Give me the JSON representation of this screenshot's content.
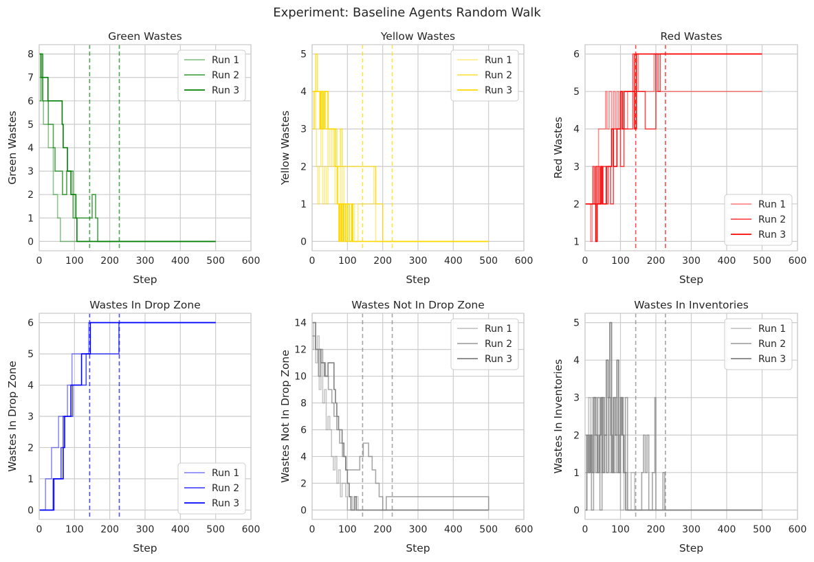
{
  "figure": {
    "title": "Experiment: Baseline Agents Random Walk"
  },
  "chart_data": [
    {
      "type": "line",
      "key": "green",
      "title": "Green Wastes",
      "xlabel": "Step",
      "ylabel": "Green Wastes",
      "xlim": [
        0,
        600
      ],
      "ylim": [
        -0.4,
        8.4
      ],
      "xticks": [
        0,
        100,
        200,
        300,
        400,
        500,
        600
      ],
      "yticks": [
        0,
        1,
        2,
        3,
        4,
        5,
        6,
        7,
        8
      ],
      "grid": true,
      "legend": "upper right",
      "color": "#008000",
      "vlines": [
        143,
        227
      ],
      "series": [
        {
          "name": "Run 1",
          "alpha": 0.45,
          "x": [
            0,
            5,
            10,
            12,
            22,
            26,
            40,
            42,
            52,
            60,
            500
          ],
          "y": [
            7,
            8,
            6,
            5,
            5,
            4,
            2,
            2,
            1,
            0,
            0
          ]
        },
        {
          "name": "Run 2",
          "alpha": 0.7,
          "x": [
            0,
            5,
            10,
            22,
            26,
            40,
            45,
            62,
            66,
            75,
            78,
            80,
            96,
            134,
            150,
            154,
            160,
            166,
            500
          ],
          "y": [
            6,
            8,
            6,
            6,
            5,
            4,
            3,
            3,
            2,
            2,
            3,
            3,
            1,
            1,
            2,
            2,
            1,
            0,
            0
          ]
        },
        {
          "name": "Run 3",
          "alpha": 1.0,
          "x": [
            0,
            5,
            12,
            25,
            60,
            65,
            68,
            74,
            78,
            80,
            87,
            90,
            96,
            104,
            107,
            500
          ],
          "y": [
            8,
            7,
            7,
            6,
            6,
            5,
            4,
            4,
            4,
            3,
            3,
            2,
            2,
            1,
            0,
            0
          ]
        }
      ]
    },
    {
      "type": "line",
      "key": "yellow",
      "title": "Yellow Wastes",
      "xlabel": "Step",
      "ylabel": "Yellow Wastes",
      "xlim": [
        0,
        600
      ],
      "ylim": [
        -0.25,
        5.25
      ],
      "xticks": [
        0,
        100,
        200,
        300,
        400,
        500,
        600
      ],
      "yticks": [
        0,
        1,
        2,
        3,
        4,
        5
      ],
      "grid": true,
      "legend": "upper right",
      "color": "#ffd700",
      "vlines": [
        143,
        227
      ],
      "series": [
        {
          "name": "Run 1",
          "alpha": 0.45,
          "x": [
            0,
            6,
            10,
            12,
            16,
            20,
            25,
            30,
            35,
            40,
            45,
            50,
            55,
            60,
            65,
            70,
            80,
            85,
            90,
            120,
            130,
            168,
            175,
            180,
            500
          ],
          "y": [
            3,
            4,
            3,
            2,
            1,
            2,
            3,
            1,
            2,
            1,
            3,
            2,
            3,
            2,
            1,
            2,
            1,
            2,
            1,
            0,
            1,
            1,
            2,
            0,
            0
          ]
        },
        {
          "name": "Run 2",
          "alpha": 0.7,
          "x": [
            0,
            5,
            10,
            15,
            22,
            26,
            30,
            34,
            38,
            45,
            60,
            70,
            80,
            85,
            95,
            110,
            150,
            170,
            180,
            190,
            200,
            500
          ],
          "y": [
            3,
            4,
            5,
            4,
            3,
            4,
            3,
            4,
            3,
            3,
            3,
            2,
            3,
            2,
            2,
            2,
            2,
            2,
            1,
            1,
            0,
            0
          ]
        },
        {
          "name": "Run 3",
          "alpha": 1.0,
          "x": [
            0,
            10,
            22,
            25,
            30,
            34,
            45,
            60,
            65,
            72,
            76,
            78,
            82,
            84,
            88,
            90,
            95,
            100,
            105,
            112,
            115,
            500
          ],
          "y": [
            4,
            4,
            3,
            4,
            3,
            4,
            3,
            3,
            2,
            1,
            0,
            1,
            0,
            1,
            0,
            1,
            0,
            1,
            0,
            1,
            0,
            0
          ]
        }
      ]
    },
    {
      "type": "line",
      "key": "red",
      "title": "Red Wastes",
      "xlabel": "Step",
      "ylabel": "Red Wastes",
      "xlim": [
        0,
        600
      ],
      "ylim": [
        0.75,
        6.25
      ],
      "xticks": [
        0,
        100,
        200,
        300,
        400,
        500,
        600
      ],
      "yticks": [
        1,
        2,
        3,
        4,
        5,
        6
      ],
      "grid": true,
      "legend": "lower right",
      "color": "#ff0000",
      "vlines": [
        143,
        227
      ],
      "series": [
        {
          "name": "Run 1",
          "alpha": 0.45,
          "x": [
            0,
            16,
            20,
            30,
            38,
            50,
            58,
            62,
            68,
            75,
            80,
            85,
            90,
            95,
            100,
            110,
            120,
            130,
            140,
            150,
            180,
            195,
            200,
            500
          ],
          "y": [
            2,
            1,
            2,
            3,
            4,
            4,
            5,
            4,
            5,
            4,
            5,
            4,
            5,
            4,
            5,
            4,
            5,
            5,
            6,
            5,
            5,
            6,
            5,
            5
          ]
        },
        {
          "name": "Run 2",
          "alpha": 0.7,
          "x": [
            0,
            22,
            26,
            30,
            34,
            38,
            42,
            48,
            55,
            60,
            65,
            72,
            80,
            90,
            100,
            110,
            130,
            135,
            140,
            150,
            170,
            180,
            190,
            200,
            206,
            212,
            220,
            500
          ],
          "y": [
            2,
            3,
            2,
            3,
            2,
            3,
            2,
            3,
            3,
            2,
            3,
            2,
            4,
            4,
            3,
            4,
            4,
            6,
            5,
            5,
            4,
            4,
            4,
            6,
            5,
            6,
            6,
            6
          ]
        },
        {
          "name": "Run 3",
          "alpha": 1.0,
          "x": [
            0,
            20,
            30,
            34,
            38,
            45,
            50,
            60,
            70,
            75,
            80,
            90,
            95,
            100,
            105,
            110,
            130,
            140,
            145,
            150,
            500
          ],
          "y": [
            2,
            2,
            1,
            2,
            2,
            3,
            2,
            3,
            3,
            4,
            3,
            4,
            4,
            5,
            4,
            5,
            5,
            4,
            6,
            6,
            6
          ]
        }
      ]
    },
    {
      "type": "line",
      "key": "dropzone",
      "title": "Wastes In Drop Zone",
      "xlabel": "Step",
      "ylabel": "Wastes In Drop Zone",
      "xlim": [
        0,
        600
      ],
      "ylim": [
        -0.3,
        6.3
      ],
      "xticks": [
        0,
        100,
        200,
        300,
        400,
        500,
        600
      ],
      "yticks": [
        0,
        1,
        2,
        3,
        4,
        5,
        6
      ],
      "grid": true,
      "legend": "lower right",
      "color": "#0000ff",
      "vlines": [
        143,
        227
      ],
      "series": [
        {
          "name": "Run 1",
          "alpha": 0.45,
          "x": [
            0,
            18,
            35,
            55,
            80,
            93,
            140,
            500
          ],
          "y": [
            0,
            1,
            2,
            3,
            4,
            5,
            6,
            6
          ]
        },
        {
          "name": "Run 2",
          "alpha": 0.7,
          "x": [
            0,
            42,
            62,
            68,
            95,
            120,
            133,
            210,
            226,
            500
          ],
          "y": [
            0,
            1,
            2,
            3,
            4,
            4,
            5,
            5,
            6,
            6
          ]
        },
        {
          "name": "Run 3",
          "alpha": 1.0,
          "x": [
            0,
            40,
            55,
            68,
            72,
            75,
            90,
            98,
            105,
            120,
            140,
            145,
            500
          ],
          "y": [
            0,
            1,
            1,
            2,
            3,
            3,
            4,
            4,
            4,
            5,
            5,
            6,
            6
          ]
        }
      ]
    },
    {
      "type": "line",
      "key": "notdrop",
      "title": "Wastes Not In Drop Zone",
      "xlabel": "Step",
      "ylabel": "Wastes Not In Drop Zone",
      "xlim": [
        0,
        600
      ],
      "ylim": [
        -0.7,
        14.7
      ],
      "xticks": [
        0,
        100,
        200,
        300,
        400,
        500,
        600
      ],
      "yticks": [
        0,
        2,
        4,
        6,
        8,
        10,
        12,
        14
      ],
      "grid": true,
      "legend": "upper right",
      "color": "#808080",
      "vlines": [
        143,
        227
      ],
      "series": [
        {
          "name": "Run 1",
          "alpha": 0.45,
          "x": [
            0,
            4,
            10,
            15,
            20,
            25,
            30,
            35,
            40,
            45,
            50,
            55,
            60,
            65,
            70,
            75,
            80,
            85,
            95,
            100,
            110,
            115,
            125,
            130,
            140,
            160,
            500
          ],
          "y": [
            12,
            14,
            11,
            13,
            9,
            11,
            8,
            9,
            6,
            7,
            6,
            4,
            3,
            4,
            2,
            3,
            1,
            2,
            1,
            0,
            1,
            0,
            1,
            0,
            0,
            0,
            0
          ]
        },
        {
          "name": "Run 2",
          "alpha": 0.7,
          "x": [
            0,
            10,
            18,
            24,
            30,
            38,
            46,
            56,
            62,
            70,
            78,
            86,
            96,
            120,
            135,
            145,
            160,
            170,
            180,
            190,
            200,
            210,
            500
          ],
          "y": [
            13,
            12,
            10,
            12,
            11,
            10,
            9,
            8,
            7,
            6,
            5,
            4,
            3,
            3,
            4,
            5,
            4,
            3,
            2,
            1,
            0,
            1,
            0
          ]
        },
        {
          "name": "Run 3",
          "alpha": 1.0,
          "x": [
            0,
            10,
            25,
            35,
            45,
            50,
            62,
            66,
            70,
            75,
            80,
            85,
            90,
            95,
            100,
            105,
            110,
            120,
            125,
            500
          ],
          "y": [
            14,
            12,
            11,
            10,
            11,
            11,
            9,
            8,
            7,
            6,
            6,
            5,
            4,
            3,
            2,
            1,
            0,
            1,
            0,
            0
          ]
        }
      ]
    },
    {
      "type": "line",
      "key": "inventories",
      "title": "Wastes In Inventories",
      "xlabel": "Step",
      "ylabel": "Wastes In Inventories",
      "xlim": [
        0,
        600
      ],
      "ylim": [
        -0.25,
        5.25
      ],
      "xticks": [
        0,
        100,
        200,
        300,
        400,
        500,
        600
      ],
      "yticks": [
        0,
        1,
        2,
        3,
        4,
        5
      ],
      "grid": true,
      "legend": "upper right",
      "color": "#808080",
      "vlines": [
        143,
        227
      ],
      "series": [
        {
          "name": "Run 1",
          "alpha": 0.45,
          "x": [
            0,
            5,
            10,
            15,
            20,
            25,
            30,
            35,
            40,
            45,
            50,
            55,
            60,
            65,
            70,
            75,
            80,
            90,
            100,
            110,
            120,
            130,
            140,
            500
          ],
          "y": [
            1,
            2,
            3,
            1,
            3,
            2,
            3,
            1,
            2,
            1,
            3,
            2,
            1,
            3,
            1,
            2,
            1,
            2,
            0,
            1,
            0,
            1,
            0,
            0
          ]
        },
        {
          "name": "Run 2",
          "alpha": 0.7,
          "x": [
            0,
            6,
            12,
            18,
            24,
            30,
            36,
            42,
            48,
            54,
            60,
            66,
            72,
            78,
            84,
            90,
            96,
            102,
            108,
            114,
            120,
            140,
            160,
            165,
            170,
            175,
            180,
            190,
            197,
            200,
            210,
            220,
            225,
            230,
            500
          ],
          "y": [
            2,
            1,
            2,
            0,
            3,
            1,
            3,
            0,
            3,
            2,
            1,
            3,
            2,
            1,
            3,
            1,
            2,
            3,
            1,
            3,
            0,
            0,
            1,
            2,
            1,
            2,
            0,
            1,
            3,
            0,
            0,
            1,
            0,
            0,
            0
          ]
        },
        {
          "name": "Run 3",
          "alpha": 1.0,
          "x": [
            0,
            5,
            10,
            15,
            20,
            25,
            30,
            35,
            40,
            45,
            50,
            55,
            60,
            65,
            70,
            75,
            80,
            85,
            90,
            95,
            100,
            105,
            110,
            115,
            120,
            500
          ],
          "y": [
            0,
            2,
            1,
            2,
            1,
            3,
            2,
            1,
            2,
            3,
            1,
            2,
            4,
            3,
            5,
            1,
            3,
            2,
            4,
            1,
            3,
            2,
            1,
            0,
            0,
            0
          ]
        }
      ]
    }
  ]
}
